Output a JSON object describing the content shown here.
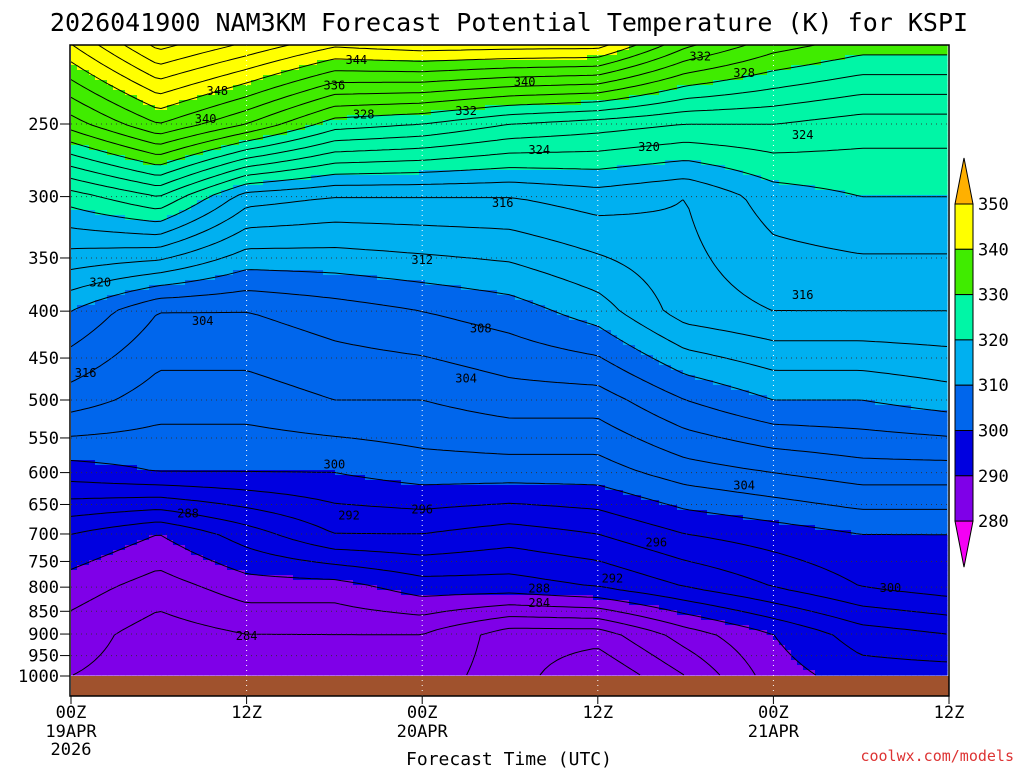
{
  "chart_data": {
    "type": "heatmap",
    "title": "2026041900 NAM3KM Forecast Potential Temperature (K) for KSPI",
    "xlabel": "Forecast Time (UTC)",
    "ylabel": "",
    "x_ticks": [
      {
        "hour": 0,
        "label": "00Z",
        "sub1": "19APR",
        "sub2": "2026"
      },
      {
        "hour": 12,
        "label": "12Z",
        "sub1": "",
        "sub2": ""
      },
      {
        "hour": 24,
        "label": "00Z",
        "sub1": "20APR",
        "sub2": ""
      },
      {
        "hour": 36,
        "label": "12Z",
        "sub1": "",
        "sub2": ""
      },
      {
        "hour": 48,
        "label": "00Z",
        "sub1": "21APR",
        "sub2": ""
      },
      {
        "hour": 60,
        "label": "12Z",
        "sub1": "",
        "sub2": ""
      }
    ],
    "xlim": [
      0,
      60
    ],
    "y_ticks": [
      250,
      300,
      350,
      400,
      450,
      500,
      550,
      600,
      650,
      700,
      750,
      800,
      850,
      900,
      950,
      1000
    ],
    "ylim_hPa": [
      200,
      1000
    ],
    "colorbar": {
      "levels": [
        280,
        290,
        300,
        310,
        320,
        330,
        340,
        350
      ],
      "colors": [
        "#f400f4",
        "#7f00e8",
        "#0000e0",
        "#0066ec",
        "#00b0f0",
        "#00f6a6",
        "#40ec00",
        "#ffff00",
        "#ffb000"
      ]
    },
    "contour_interval_K": 2,
    "profiles": {
      "hours": [
        0,
        6,
        12,
        18,
        24,
        30,
        36,
        42,
        48,
        54,
        60
      ],
      "theta_200": [
        343,
        350,
        347,
        344,
        345,
        345,
        345,
        338,
        334,
        332,
        332
      ],
      "theta_250": [
        333,
        338,
        334,
        329,
        328,
        326,
        325,
        324,
        324,
        323,
        323
      ],
      "theta_300": [
        321,
        324,
        317,
        316,
        316,
        316,
        317,
        316,
        319,
        320,
        320
      ],
      "theta_400": [
        310,
        306,
        306,
        307,
        308,
        309,
        311,
        315,
        316,
        316,
        316
      ],
      "theta_500": [
        305,
        303,
        303,
        304,
        304,
        305,
        305,
        308,
        310,
        310,
        311
      ],
      "theta_600": [
        299,
        300,
        300,
        300,
        301,
        301,
        301,
        303,
        304,
        305,
        305
      ],
      "theta_700": [
        292,
        290,
        293,
        296,
        296,
        295,
        296,
        298,
        299,
        300,
        300
      ],
      "theta_800": [
        289,
        287,
        289,
        289,
        291,
        291,
        292,
        294,
        296,
        298,
        299
      ],
      "theta_900": [
        287,
        285,
        286,
        286,
        286,
        283,
        283,
        287,
        290,
        293,
        294
      ],
      "theta_1000": [
        286,
        285,
        284,
        285,
        285,
        283,
        280,
        284,
        289,
        291,
        291
      ]
    },
    "contour_labels": [
      {
        "text": "344",
        "hour": 19.5,
        "p": 213
      },
      {
        "text": "348",
        "hour": 10.0,
        "p": 230
      },
      {
        "text": "336",
        "hour": 18.0,
        "p": 227
      },
      {
        "text": "340",
        "hour": 31.0,
        "p": 225
      },
      {
        "text": "332",
        "hour": 43.0,
        "p": 211
      },
      {
        "text": "328",
        "hour": 46.0,
        "p": 220
      },
      {
        "text": "332",
        "hour": 27.0,
        "p": 242
      },
      {
        "text": "340",
        "hour": 9.2,
        "p": 247
      },
      {
        "text": "328",
        "hour": 20.0,
        "p": 244
      },
      {
        "text": "324",
        "hour": 50.0,
        "p": 257
      },
      {
        "text": "324",
        "hour": 32.0,
        "p": 267
      },
      {
        "text": "320",
        "hour": 39.5,
        "p": 265
      },
      {
        "text": "316",
        "hour": 29.5,
        "p": 305
      },
      {
        "text": "312",
        "hour": 24.0,
        "p": 352
      },
      {
        "text": "316",
        "hour": 50.0,
        "p": 384
      },
      {
        "text": "320",
        "hour": 2.0,
        "p": 372
      },
      {
        "text": "304",
        "hour": 9.0,
        "p": 410
      },
      {
        "text": "308",
        "hour": 28.0,
        "p": 418
      },
      {
        "text": "316",
        "hour": 1.0,
        "p": 467
      },
      {
        "text": "304",
        "hour": 27.0,
        "p": 474
      },
      {
        "text": "300",
        "hour": 18.0,
        "p": 588
      },
      {
        "text": "292",
        "hour": 19.0,
        "p": 668
      },
      {
        "text": "296",
        "hour": 24.0,
        "p": 658
      },
      {
        "text": "304",
        "hour": 46.0,
        "p": 620
      },
      {
        "text": "288",
        "hour": 8.0,
        "p": 665
      },
      {
        "text": "296",
        "hour": 40.0,
        "p": 715
      },
      {
        "text": "292",
        "hour": 37.0,
        "p": 783
      },
      {
        "text": "300",
        "hour": 56.0,
        "p": 802
      },
      {
        "text": "288",
        "hour": 32.0,
        "p": 803
      },
      {
        "text": "284",
        "hour": 32.0,
        "p": 832
      },
      {
        "text": "284",
        "hour": 12.0,
        "p": 904
      }
    ]
  },
  "credit": "coolwx.com/models"
}
